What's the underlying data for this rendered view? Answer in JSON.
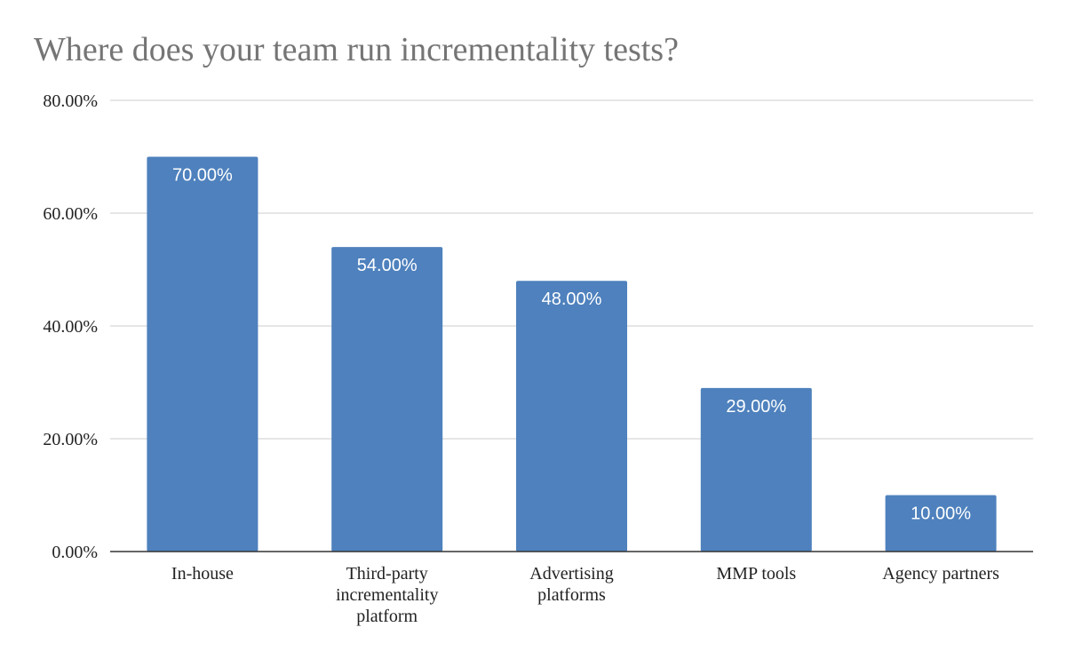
{
  "chart_data": {
    "type": "bar",
    "title": "Where does your team run incrementality tests?",
    "categories": [
      [
        "In-house"
      ],
      [
        "Third-party",
        "incrementality",
        "platform"
      ],
      [
        "Advertising",
        "platforms"
      ],
      [
        "MMP tools"
      ],
      [
        "Agency partners"
      ]
    ],
    "values": [
      70,
      54,
      48,
      29,
      10
    ],
    "data_labels": [
      "70.00%",
      "54.00%",
      "48.00%",
      "29.00%",
      "10.00%"
    ],
    "ylim": [
      0,
      80
    ],
    "yticks": [
      0,
      20,
      40,
      60,
      80
    ],
    "ytick_labels": [
      "0.00%",
      "20.00%",
      "40.00%",
      "60.00%",
      "80.00%"
    ],
    "xlabel": "",
    "ylabel": "",
    "grid": true,
    "legend": "none",
    "bar_color": "#4e81bd"
  }
}
